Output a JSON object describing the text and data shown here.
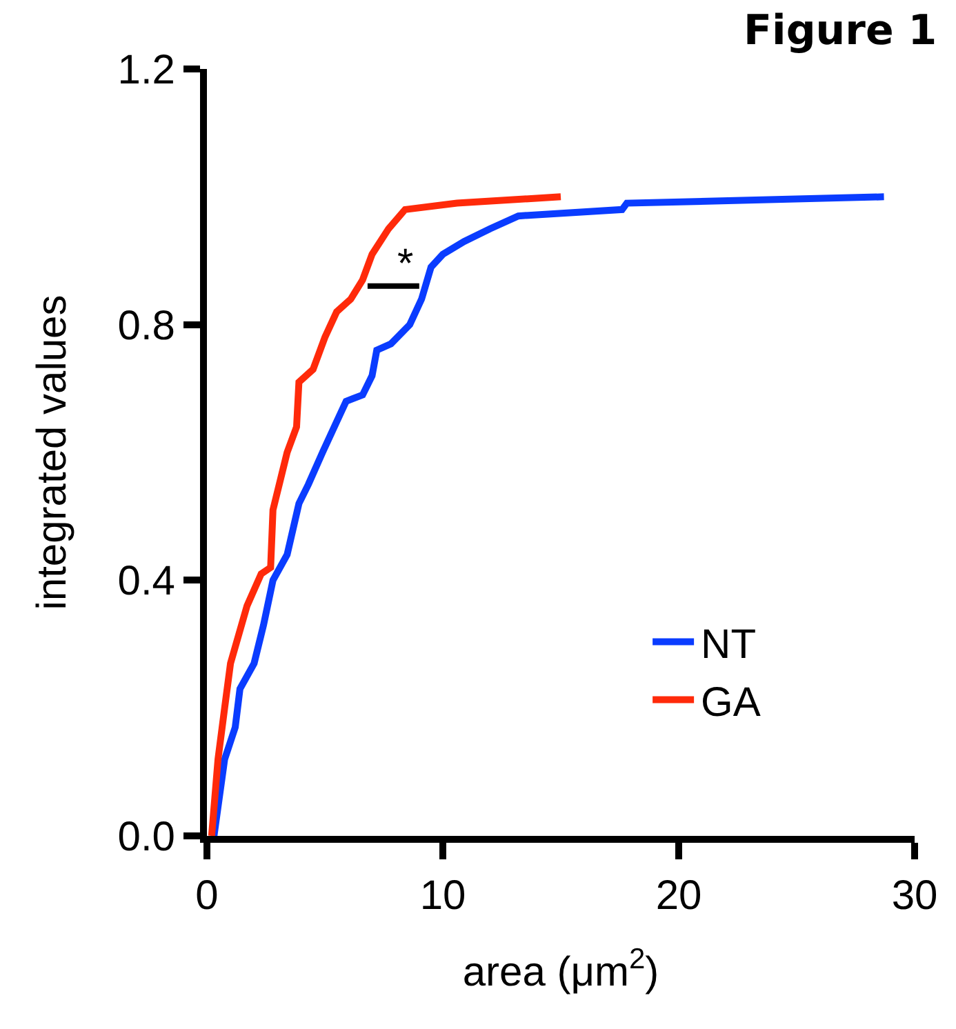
{
  "chart_data": {
    "type": "line",
    "title": "Figure 1",
    "xlabel": "area (μm$^{2}$)",
    "ylabel": "integrated values",
    "xlim": [
      0,
      30
    ],
    "xticks": [
      0,
      10,
      20,
      30
    ],
    "ylim": [
      0,
      1.2
    ],
    "yticks": [
      {
        "value": 0,
        "label": "0.0"
      },
      0.4,
      0.8,
      1.2
    ],
    "grid": false,
    "legend": "bottom right",
    "annotations": [
      "*"
    ],
    "series": [
      {
        "name": "NT",
        "color": "#0a3cff",
        "x": [
          0.3,
          0.75,
          1.2,
          1.4,
          2.0,
          2.4,
          2.8,
          3.4,
          3.9,
          4.3,
          4.9,
          5.4,
          5.9,
          6.6,
          7.0,
          7.2,
          7.8,
          8.6,
          9.1,
          9.5,
          10.0,
          10.9,
          12.0,
          13.2,
          17.6,
          17.8,
          28.7
        ],
        "values": [
          0,
          0.12,
          0.17,
          0.23,
          0.27,
          0.33,
          0.4,
          0.44,
          0.52,
          0.55,
          0.6,
          0.64,
          0.68,
          0.69,
          0.72,
          0.76,
          0.77,
          0.8,
          0.84,
          0.89,
          0.91,
          0.93,
          0.95,
          0.97,
          0.98,
          0.99,
          1.0
        ]
      },
      {
        "name": "GA",
        "color": "#ff2a0a",
        "x": [
          0.2,
          0.47,
          0.75,
          1.0,
          1.7,
          2.3,
          2.7,
          2.8,
          3.2,
          3.4,
          3.8,
          3.9,
          4.5,
          5.0,
          5.5,
          6.1,
          6.6,
          7.0,
          7.7,
          8.4,
          10.6,
          15.0
        ],
        "values": [
          0,
          0.12,
          0.2,
          0.27,
          0.36,
          0.41,
          0.42,
          0.51,
          0.57,
          0.6,
          0.64,
          0.71,
          0.73,
          0.78,
          0.82,
          0.84,
          0.87,
          0.91,
          0.95,
          0.98,
          0.99,
          1.0
        ]
      }
    ]
  }
}
